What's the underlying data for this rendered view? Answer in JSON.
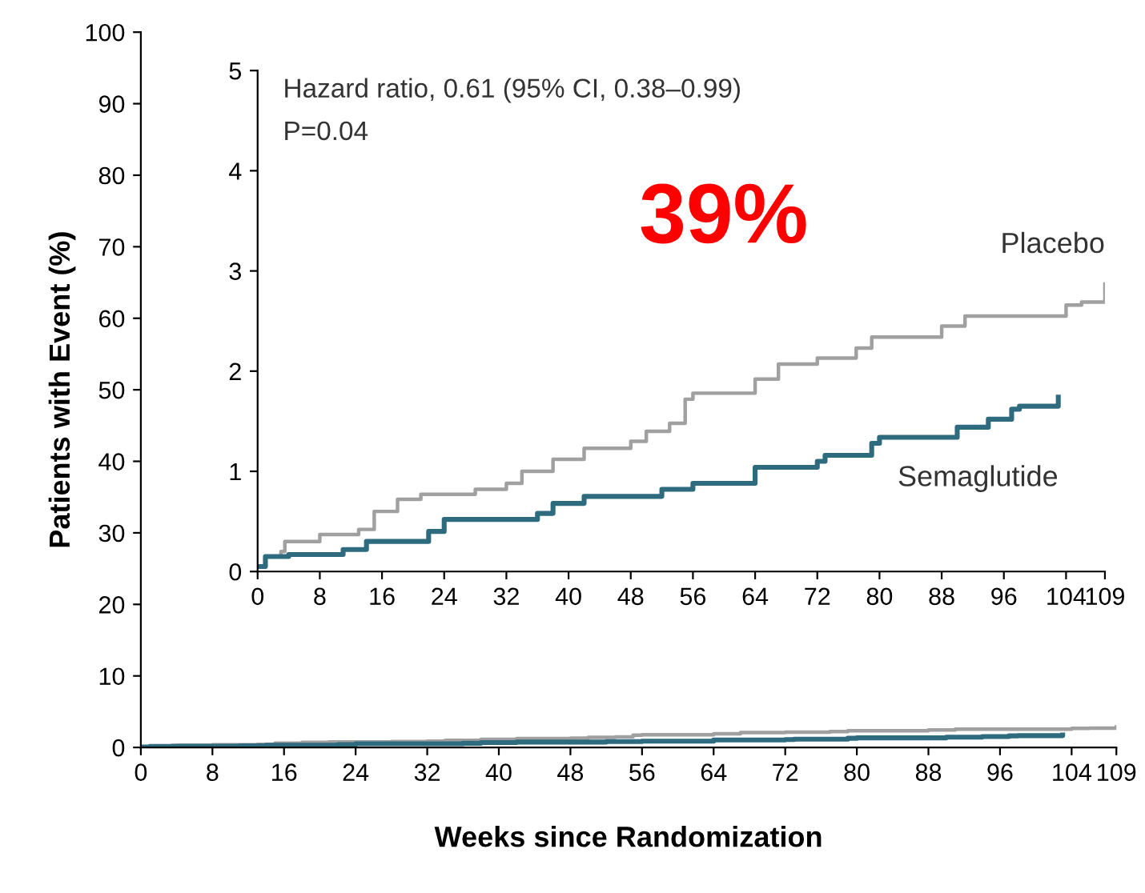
{
  "chart_data": [
    {
      "type": "step",
      "xlabel": "Weeks since Randomization",
      "ylabel": "Patients with Event (%)",
      "xlim": [
        0,
        109
      ],
      "xticks": [
        0,
        8,
        16,
        24,
        32,
        40,
        48,
        56,
        64,
        72,
        80,
        88,
        96,
        104,
        109
      ],
      "ylim": [
        0,
        100
      ],
      "yticks": [
        0,
        10,
        20,
        30,
        40,
        50,
        60,
        70,
        80,
        90,
        100
      ],
      "grid": false,
      "legend": false,
      "series": [
        {
          "color": "#a0a0a0",
          "x": [
            0,
            1,
            3,
            3.5,
            8,
            13,
            15,
            18,
            21,
            28,
            32,
            34,
            38,
            42,
            48,
            50,
            53,
            55,
            56,
            64,
            67,
            72,
            77,
            79,
            88,
            91,
            104,
            106,
            109
          ],
          "values": [
            0.05,
            0.15,
            0.2,
            0.3,
            0.37,
            0.42,
            0.6,
            0.72,
            0.77,
            0.82,
            0.88,
            1.0,
            1.12,
            1.23,
            1.3,
            1.4,
            1.48,
            1.72,
            1.78,
            1.92,
            2.07,
            2.13,
            2.23,
            2.34,
            2.45,
            2.55,
            2.66,
            2.69,
            2.87
          ]
        },
        {
          "color": "#2e6b7e",
          "x": [
            0,
            1,
            4,
            11,
            14,
            22,
            24,
            36,
            38,
            42,
            52,
            56,
            64,
            72,
            73,
            79,
            80,
            90,
            94,
            97,
            98,
            103
          ],
          "values": [
            0.05,
            0.15,
            0.17,
            0.22,
            0.3,
            0.4,
            0.52,
            0.58,
            0.68,
            0.75,
            0.82,
            0.88,
            1.04,
            1.1,
            1.16,
            1.28,
            1.34,
            1.44,
            1.52,
            1.62,
            1.65,
            1.74
          ]
        }
      ]
    },
    {
      "type": "step",
      "xlim": [
        0,
        109
      ],
      "xticks": [
        0,
        8,
        16,
        24,
        32,
        40,
        48,
        56,
        64,
        72,
        80,
        88,
        96,
        104,
        109
      ],
      "ylim": [
        0,
        5
      ],
      "yticks": [
        0,
        1,
        2,
        3,
        4,
        5
      ],
      "grid": false,
      "legend": false,
      "annotations": [
        "Hazard ratio, 0.61 (95% CI, 0.38–0.99)",
        "P=0.04",
        "39%"
      ],
      "series": [
        {
          "name": "Placebo",
          "color": "#a0a0a0",
          "x": [
            0,
            1,
            3,
            3.5,
            8,
            13,
            15,
            18,
            21,
            28,
            32,
            34,
            38,
            42,
            48,
            50,
            53,
            55,
            56,
            64,
            67,
            72,
            77,
            79,
            88,
            91,
            104,
            106,
            109
          ],
          "values": [
            0.05,
            0.15,
            0.2,
            0.3,
            0.37,
            0.42,
            0.6,
            0.72,
            0.77,
            0.82,
            0.88,
            1.0,
            1.12,
            1.23,
            1.3,
            1.4,
            1.48,
            1.72,
            1.78,
            1.92,
            2.07,
            2.13,
            2.23,
            2.34,
            2.45,
            2.55,
            2.66,
            2.69,
            2.87
          ]
        },
        {
          "name": "Semaglutide",
          "color": "#2e6b7e",
          "x": [
            0,
            1,
            4,
            11,
            14,
            22,
            24,
            36,
            38,
            42,
            52,
            56,
            64,
            72,
            73,
            79,
            80,
            90,
            94,
            97,
            98,
            103
          ],
          "values": [
            0.05,
            0.15,
            0.17,
            0.22,
            0.3,
            0.4,
            0.52,
            0.58,
            0.68,
            0.75,
            0.82,
            0.88,
            1.04,
            1.1,
            1.16,
            1.28,
            1.34,
            1.44,
            1.52,
            1.62,
            1.65,
            1.74
          ]
        }
      ]
    }
  ]
}
